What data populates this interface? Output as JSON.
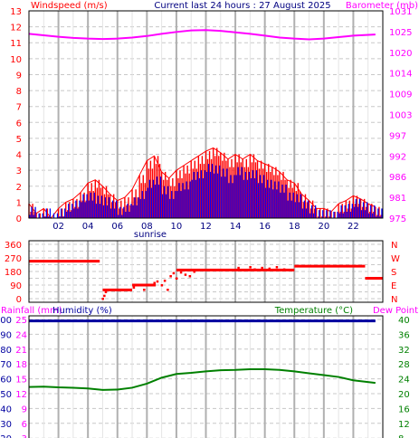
{
  "header": {
    "left_title": "Windspeed (m/s)",
    "center_title": "Current last 24 hours : 27 August 2025",
    "right_title": "Barometer (mb)"
  },
  "colors": {
    "background": "#ffffff",
    "axis": "#000000",
    "grid": "#c8c8c8",
    "hour_lines": "#b0b0b0",
    "wind_gust": "#ff0000",
    "wind_avg": "#0000ff",
    "barometer": "#ff00ff",
    "direction": "#ff0000",
    "humidity": "#0000a0",
    "temperature": "#008000",
    "dewpoint": "#ff00ff",
    "rain": "#ff00ff"
  },
  "chart_data": [
    {
      "type": "line",
      "id": "wind-barometer",
      "x_ticks": [
        "02",
        "04",
        "06",
        "08",
        "10",
        "12",
        "14",
        "16",
        "18",
        "20",
        "22"
      ],
      "x_annotation": "sunrise",
      "y_left": {
        "label": "Windspeed (m/s)",
        "ticks": [
          0,
          1,
          2,
          3,
          4,
          5,
          6,
          7,
          8,
          9,
          10,
          11,
          12,
          13
        ],
        "range": [
          0,
          13
        ]
      },
      "y_right": {
        "label": "Barometer (mb)",
        "ticks": [
          975,
          981,
          986,
          992,
          997,
          1003,
          1009,
          1014,
          1020,
          1025,
          1031
        ],
        "range": [
          975,
          1031
        ]
      },
      "series": [
        {
          "name": "Gust",
          "axis": "left",
          "hours": [
            0,
            0.5,
            1,
            1.5,
            2,
            2.5,
            3,
            3.5,
            4,
            4.5,
            5,
            5.5,
            6,
            6.5,
            7,
            7.5,
            8,
            8.5,
            9,
            9.5,
            10,
            10.5,
            11,
            11.5,
            12,
            12.5,
            13,
            13.5,
            14,
            14.5,
            15,
            15.5,
            16,
            16.5,
            17,
            17.5,
            18,
            18.5,
            19,
            19.5,
            20,
            20.5,
            21,
            21.5,
            22,
            22.5,
            23,
            23.5
          ],
          "values": [
            0.9,
            0.3,
            0.6,
            0,
            0.6,
            1.0,
            1.2,
            1.6,
            2.2,
            2.4,
            2.0,
            1.5,
            1.1,
            1.3,
            1.8,
            2.7,
            3.6,
            3.9,
            2.9,
            2.5,
            3.0,
            3.3,
            3.6,
            3.9,
            4.2,
            4.4,
            4.1,
            3.7,
            4.0,
            3.7,
            4.0,
            3.6,
            3.4,
            3.2,
            2.9,
            2.4,
            2.2,
            1.5,
            1.1,
            0.6,
            0.6,
            0.4,
            0.9,
            1.1,
            1.4,
            1.2,
            0.9,
            0.7
          ]
        },
        {
          "name": "Average",
          "axis": "left",
          "hours": [
            0,
            0.5,
            1,
            1.5,
            2,
            2.5,
            3,
            3.5,
            4,
            4.5,
            5,
            5.5,
            6,
            6.5,
            7,
            7.5,
            8,
            8.5,
            9,
            9.5,
            10,
            10.5,
            11,
            11.5,
            12,
            12.5,
            13,
            13.5,
            14,
            14.5,
            15,
            15.5,
            16,
            16.5,
            17,
            17.5,
            18,
            18.5,
            19,
            19.5,
            20,
            20.5,
            21,
            21.5,
            22,
            22.5,
            23,
            23.5
          ],
          "values": [
            0.4,
            0,
            0.3,
            0,
            0.3,
            0.6,
            0.8,
            1.2,
            1.3,
            1.1,
            1.0,
            0.8,
            0.4,
            0.6,
            1.0,
            1.4,
            2.1,
            2.3,
            1.7,
            1.4,
            1.9,
            2.0,
            2.6,
            2.7,
            3.1,
            3.0,
            2.8,
            2.4,
            2.9,
            2.6,
            2.7,
            2.4,
            2.1,
            2.0,
            1.8,
            1.3,
            1.2,
            0.8,
            0.5,
            0.2,
            0.2,
            0.1,
            0.5,
            0.6,
            0.9,
            0.7,
            0.5,
            0.3
          ]
        },
        {
          "name": "Barometer",
          "axis": "right",
          "hours": [
            0,
            1,
            2,
            3,
            4,
            5,
            6,
            7,
            8,
            9,
            10,
            11,
            12,
            13,
            14,
            15,
            16,
            17,
            18,
            19,
            20,
            21,
            22,
            23.5
          ],
          "values": [
            1024.8,
            1024.4,
            1024.0,
            1023.7,
            1023.5,
            1023.4,
            1023.5,
            1023.8,
            1024.2,
            1024.8,
            1025.3,
            1025.7,
            1025.8,
            1025.6,
            1025.2,
            1024.8,
            1024.3,
            1023.8,
            1023.5,
            1023.3,
            1023.5,
            1023.9,
            1024.3,
            1024.6
          ]
        }
      ]
    },
    {
      "type": "scatter",
      "id": "wind-direction",
      "y_left": {
        "ticks": [
          0,
          45,
          90,
          135,
          180,
          225,
          270,
          315,
          360
        ],
        "range": [
          0,
          360
        ]
      },
      "y_right": {
        "ticks": [
          "N",
          "W",
          "S",
          "E",
          "N"
        ]
      },
      "series": [
        {
          "name": "Direction",
          "segments": [
            {
              "from": 0,
              "to": 4.8,
              "value": 248
            },
            {
              "from": 5.0,
              "to": 7.0,
              "value": 58
            },
            {
              "from": 7.0,
              "to": 8.6,
              "value": 90
            },
            {
              "from": 10.0,
              "to": 18.0,
              "value": 190
            },
            {
              "from": 18.0,
              "to": 22.8,
              "value": 215
            },
            {
              "from": 22.8,
              "to": 24.0,
              "value": 135
            }
          ],
          "dots": [
            [
              5.0,
              0
            ],
            [
              5.1,
              20
            ],
            [
              5.2,
              45
            ],
            [
              6.5,
              60
            ],
            [
              7.1,
              75
            ],
            [
              7.4,
              90
            ],
            [
              7.8,
              60
            ],
            [
              8.2,
              90
            ],
            [
              8.5,
              105
            ],
            [
              8.7,
              115
            ],
            [
              9.0,
              90
            ],
            [
              9.2,
              120
            ],
            [
              9.4,
              60
            ],
            [
              9.6,
              150
            ],
            [
              9.8,
              170
            ],
            [
              10.0,
              135
            ],
            [
              10.3,
              175
            ],
            [
              10.6,
              160
            ],
            [
              10.9,
              150
            ],
            [
              11.2,
              180
            ],
            [
              11.5,
              190
            ],
            [
              14.2,
              205
            ],
            [
              14.6,
              190
            ],
            [
              15.0,
              210
            ],
            [
              15.3,
              195
            ],
            [
              15.8,
              205
            ],
            [
              16.3,
              200
            ],
            [
              16.8,
              210
            ],
            [
              17.3,
              195
            ]
          ]
        }
      ]
    },
    {
      "type": "line",
      "id": "rain-humidity-temp",
      "y_left_outer": {
        "label": "Rainfall (mm)",
        "ticks": [
          0,
          3,
          6,
          9,
          12,
          15,
          18,
          21,
          24,
          25
        ],
        "note": "axis values as printed"
      },
      "y_left_inner": {
        "label": "Humidity (%)",
        "ticks": [
          20,
          30,
          40,
          50,
          60,
          70,
          80,
          90,
          100
        ]
      },
      "y_right": {
        "label": "Temperature (°C)",
        "ticks": [
          8,
          12,
          16,
          20,
          24,
          28,
          32,
          36,
          40
        ]
      },
      "legend": {
        "temperature": "Temperature (°C)",
        "dewpoint": "Dew Point"
      },
      "series": [
        {
          "name": "Humidity",
          "axis": "humidity",
          "hours": [
            0,
            23.5
          ],
          "values": [
            99,
            99
          ]
        },
        {
          "name": "Temperature",
          "axis": "temperature",
          "hours": [
            0,
            1,
            2,
            3,
            4,
            5,
            6,
            7,
            8,
            9,
            10,
            11,
            12,
            13,
            14,
            15,
            16,
            17,
            18,
            19,
            20,
            21,
            22,
            23.5
          ],
          "values": [
            21.8,
            21.9,
            21.7,
            21.6,
            21.4,
            21.0,
            21.1,
            21.6,
            22.7,
            24.3,
            25.3,
            25.6,
            26.0,
            26.3,
            26.4,
            26.6,
            26.6,
            26.4,
            26.0,
            25.5,
            25.0,
            24.5,
            23.6,
            22.9
          ]
        }
      ]
    }
  ]
}
